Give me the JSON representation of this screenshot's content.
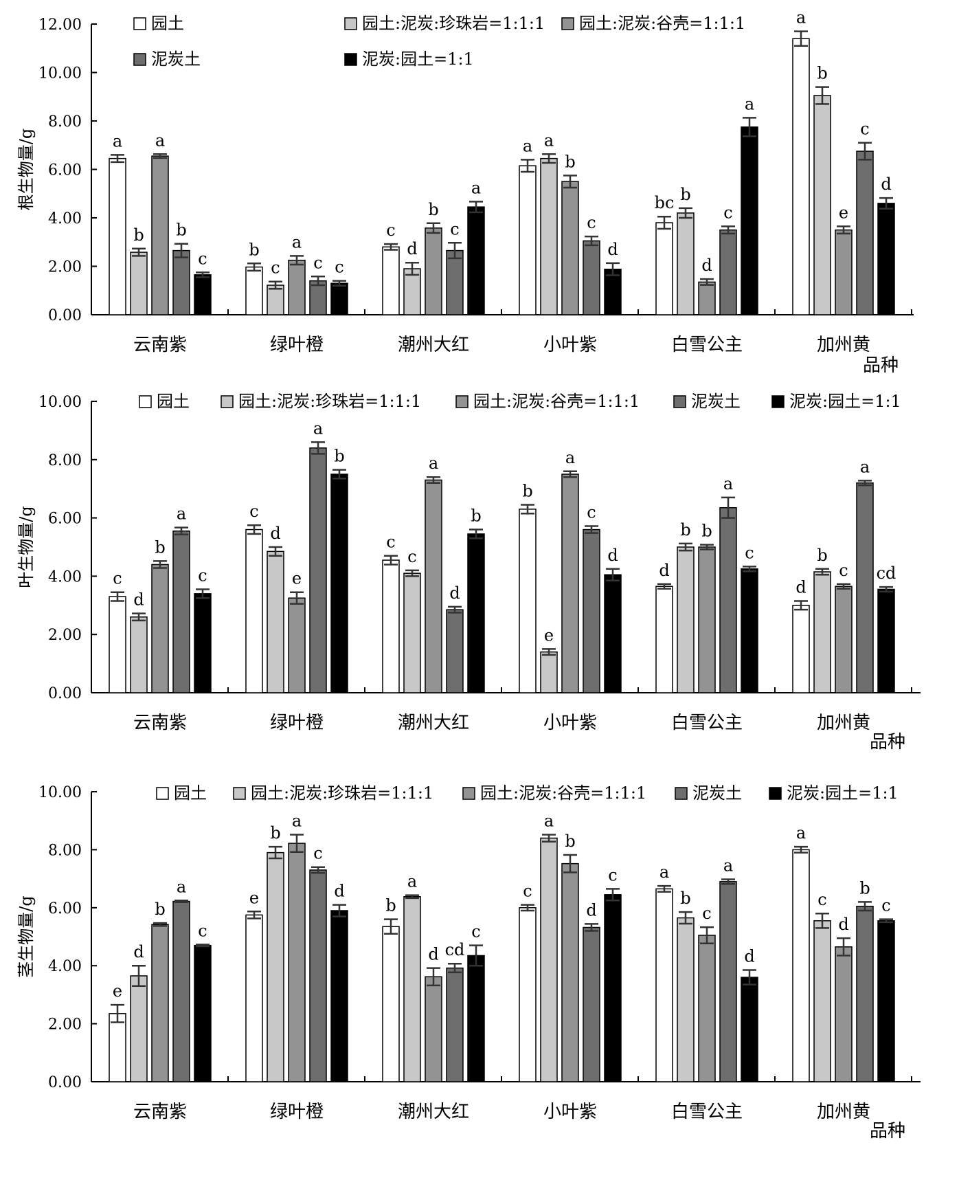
{
  "chart_data": [
    {
      "type": "bar",
      "ylabel": "根生物量/g",
      "xlabel": "品种",
      "ylim": [
        0,
        12
      ],
      "yticks": [
        "0.00",
        "2.00",
        "4.00",
        "6.00",
        "8.00",
        "10.00",
        "12.00"
      ],
      "categories": [
        "云南紫",
        "绿叶橙",
        "潮州大红",
        "小叶紫",
        "白雪公主",
        "加州黄"
      ],
      "legend": [
        "园土",
        "园土:泥炭:珍珠岩=1:1:1",
        "园土:泥炭:谷壳=1:1:1",
        "泥炭土",
        "泥炭:园土=1:1"
      ],
      "series": [
        {
          "name": "园土",
          "color": "#ffffff",
          "values": [
            6.45,
            1.97,
            2.8,
            6.15,
            3.8,
            11.4
          ],
          "errors": [
            0.15,
            0.15,
            0.12,
            0.25,
            0.25,
            0.3
          ],
          "letters": [
            "a",
            "b",
            "c",
            "a",
            "bc",
            "a"
          ]
        },
        {
          "name": "园土:泥炭:珍珠岩=1:1:1",
          "color": "#c8c8c8",
          "values": [
            2.58,
            1.22,
            1.9,
            6.45,
            4.2,
            9.05
          ],
          "errors": [
            0.15,
            0.15,
            0.25,
            0.18,
            0.2,
            0.35
          ],
          "letters": [
            "b",
            "c",
            "d",
            "a",
            "b",
            "b"
          ]
        },
        {
          "name": "园土:泥炭:谷壳=1:1:1",
          "color": "#939393",
          "values": [
            6.55,
            2.25,
            3.58,
            5.5,
            1.35,
            3.5
          ],
          "errors": [
            0.08,
            0.18,
            0.2,
            0.25,
            0.12,
            0.15
          ],
          "letters": [
            "a",
            "a",
            "b",
            "b",
            "d",
            "e"
          ]
        },
        {
          "name": "泥炭土",
          "color": "#6e6e6e",
          "values": [
            2.65,
            1.4,
            2.65,
            3.05,
            3.5,
            6.75
          ],
          "errors": [
            0.28,
            0.18,
            0.32,
            0.18,
            0.15,
            0.35
          ],
          "letters": [
            "b",
            "c",
            "c",
            "c",
            "c",
            "c"
          ]
        },
        {
          "name": "泥炭:园土=1:1",
          "color": "#000000",
          "values": [
            1.65,
            1.3,
            4.45,
            1.88,
            7.75,
            4.6
          ],
          "errors": [
            0.1,
            0.1,
            0.22,
            0.25,
            0.38,
            0.22
          ],
          "letters": [
            "c",
            "c",
            "a",
            "d",
            "a",
            "d"
          ]
        }
      ]
    },
    {
      "type": "bar",
      "ylabel": "叶生物量/g",
      "xlabel": "品种",
      "ylim": [
        0,
        10
      ],
      "yticks": [
        "0.00",
        "2.00",
        "4.00",
        "6.00",
        "8.00",
        "10.00"
      ],
      "categories": [
        "云南紫",
        "绿叶橙",
        "潮州大红",
        "小叶紫",
        "白雪公主",
        "加州黄"
      ],
      "legend": [
        "园土",
        "园土:泥炭:珍珠岩=1:1:1",
        "园土:泥炭:谷壳=1:1:1",
        "泥炭土",
        "泥炭:园土=1:1"
      ],
      "series": [
        {
          "name": "园土",
          "color": "#ffffff",
          "values": [
            3.3,
            5.6,
            4.55,
            6.3,
            3.65,
            3.0
          ],
          "errors": [
            0.15,
            0.15,
            0.15,
            0.15,
            0.08,
            0.15
          ],
          "letters": [
            "c",
            "c",
            "c",
            "b",
            "d",
            "d"
          ]
        },
        {
          "name": "园土:泥炭:珍珠岩=1:1:1",
          "color": "#c8c8c8",
          "values": [
            2.6,
            4.85,
            4.1,
            1.4,
            5.0,
            4.15
          ],
          "errors": [
            0.12,
            0.15,
            0.1,
            0.1,
            0.12,
            0.1
          ],
          "letters": [
            "d",
            "d",
            "c",
            "e",
            "b",
            "b"
          ]
        },
        {
          "name": "园土:泥炭:谷壳=1:1:1",
          "color": "#939393",
          "values": [
            4.4,
            3.25,
            7.3,
            7.5,
            5.0,
            3.65
          ],
          "errors": [
            0.12,
            0.2,
            0.1,
            0.1,
            0.08,
            0.08
          ],
          "letters": [
            "b",
            "e",
            "a",
            "a",
            "b",
            "c"
          ]
        },
        {
          "name": "泥炭土",
          "color": "#6e6e6e",
          "values": [
            5.55,
            8.4,
            2.85,
            5.6,
            6.35,
            7.2
          ],
          "errors": [
            0.12,
            0.2,
            0.1,
            0.12,
            0.35,
            0.08
          ],
          "letters": [
            "a",
            "a",
            "d",
            "c",
            "a",
            "a"
          ]
        },
        {
          "name": "泥炭:园土=1:1",
          "color": "#000000",
          "values": [
            3.4,
            7.5,
            5.45,
            4.05,
            4.25,
            3.55
          ],
          "errors": [
            0.15,
            0.15,
            0.15,
            0.2,
            0.08,
            0.08
          ],
          "letters": [
            "c",
            "b",
            "b",
            "d",
            "c",
            "cd"
          ]
        }
      ]
    },
    {
      "type": "bar",
      "ylabel": "茎生物量/g",
      "xlabel": "品种",
      "ylim": [
        0,
        10
      ],
      "yticks": [
        "0.00",
        "2.00",
        "4.00",
        "6.00",
        "8.00",
        "10.00"
      ],
      "categories": [
        "云南紫",
        "绿叶橙",
        "潮州大红",
        "小叶紫",
        "白雪公主",
        "加州黄"
      ],
      "legend": [
        "园土",
        "园土:泥炭:珍珠岩=1:1:1",
        "园土:泥炭:谷壳=1:1:1",
        "泥炭土",
        "泥炭:园土=1:1"
      ],
      "series": [
        {
          "name": "园土",
          "color": "#ffffff",
          "values": [
            2.35,
            5.75,
            5.35,
            6.0,
            6.65,
            8.0
          ],
          "errors": [
            0.3,
            0.12,
            0.25,
            0.1,
            0.1,
            0.1
          ],
          "letters": [
            "e",
            "e",
            "b",
            "c",
            "a",
            "a"
          ]
        },
        {
          "name": "园土:泥炭:珍珠岩=1:1:1",
          "color": "#c8c8c8",
          "values": [
            3.65,
            7.9,
            6.38,
            8.4,
            5.65,
            5.55
          ],
          "errors": [
            0.35,
            0.2,
            0.05,
            0.12,
            0.2,
            0.25
          ],
          "letters": [
            "d",
            "b",
            "a",
            "a",
            "b",
            "c"
          ]
        },
        {
          "name": "园土:泥炭:谷壳=1:1:1",
          "color": "#939393",
          "values": [
            5.42,
            8.22,
            3.62,
            7.52,
            5.05,
            4.65
          ],
          "errors": [
            0.05,
            0.3,
            0.3,
            0.3,
            0.28,
            0.3
          ],
          "letters": [
            "b",
            "a",
            "d",
            "b",
            "c",
            "d"
          ]
        },
        {
          "name": "泥炭土",
          "color": "#6e6e6e",
          "values": [
            6.22,
            7.3,
            3.92,
            5.32,
            6.9,
            6.05
          ],
          "errors": [
            0.03,
            0.1,
            0.15,
            0.12,
            0.08,
            0.15
          ],
          "letters": [
            "a",
            "c",
            "cd",
            "d",
            "a",
            "b"
          ]
        },
        {
          "name": "泥炭:园土=1:1",
          "color": "#000000",
          "values": [
            4.7,
            5.9,
            4.35,
            6.45,
            3.6,
            5.55
          ],
          "errors": [
            0.03,
            0.2,
            0.35,
            0.2,
            0.25,
            0.05
          ],
          "letters": [
            "c",
            "d",
            "c",
            "c",
            "d",
            "c"
          ]
        }
      ]
    }
  ]
}
